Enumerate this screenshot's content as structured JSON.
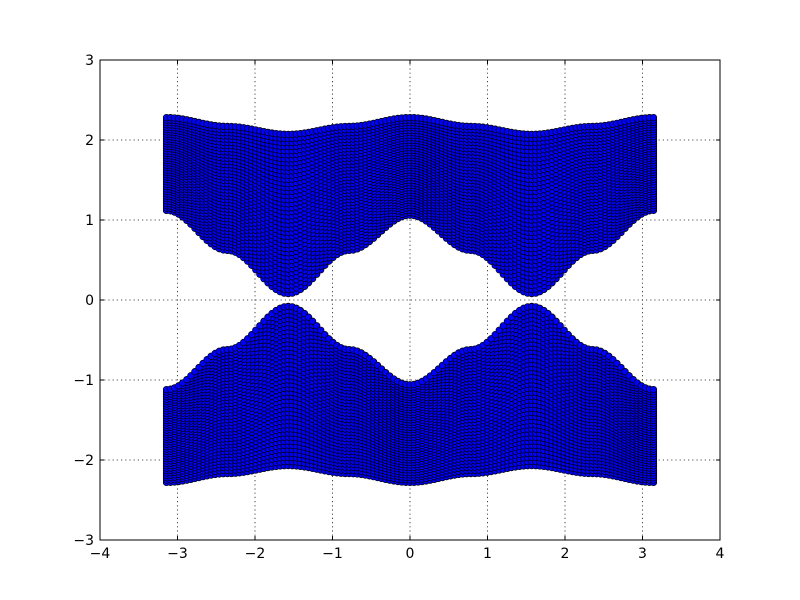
{
  "chart_data": {
    "type": "scatter",
    "title": "",
    "xlabel": "",
    "ylabel": "",
    "xlim": [
      -4,
      4
    ],
    "ylim": [
      -3,
      3
    ],
    "grid": true,
    "x_ticks": [
      -4,
      -3,
      -2,
      -1,
      0,
      1,
      2,
      3,
      4
    ],
    "y_ticks": [
      -3,
      -2,
      -1,
      0,
      1,
      2,
      3
    ],
    "x_tick_labels": [
      "−4",
      "−3",
      "−2",
      "−1",
      "0",
      "1",
      "2",
      "3",
      "4"
    ],
    "y_tick_labels": [
      "−3",
      "−2",
      "−1",
      "0",
      "1",
      "2",
      "3"
    ],
    "marker_face_color": "#0000ff",
    "marker_edge_color": "#000000",
    "x_range": [
      -3.1416,
      3.1416
    ],
    "series": [
      {
        "band": "upper",
        "x": [
          -3.1416,
          -2.3562,
          -1.5708,
          -0.7854,
          0.0,
          0.7854,
          1.5708,
          2.3562,
          3.1416
        ],
        "y_max": [
          2.28,
          2.17,
          2.07,
          2.17,
          2.28,
          2.17,
          2.07,
          2.17,
          2.28
        ],
        "y_min": [
          1.12,
          0.62,
          0.08,
          0.62,
          1.06,
          0.62,
          0.08,
          0.62,
          1.12
        ]
      },
      {
        "band": "lower",
        "x": [
          -3.1416,
          -2.3562,
          -1.5708,
          -0.7854,
          0.0,
          0.7854,
          1.5708,
          2.3562,
          3.1416
        ],
        "y_max": [
          -1.12,
          -0.62,
          -0.08,
          -0.62,
          -1.06,
          -0.62,
          -0.08,
          -0.62,
          -1.12
        ],
        "y_min": [
          -2.28,
          -2.17,
          -2.07,
          -2.17,
          -2.28,
          -2.17,
          -2.07,
          -2.17,
          -2.28
        ]
      }
    ]
  }
}
